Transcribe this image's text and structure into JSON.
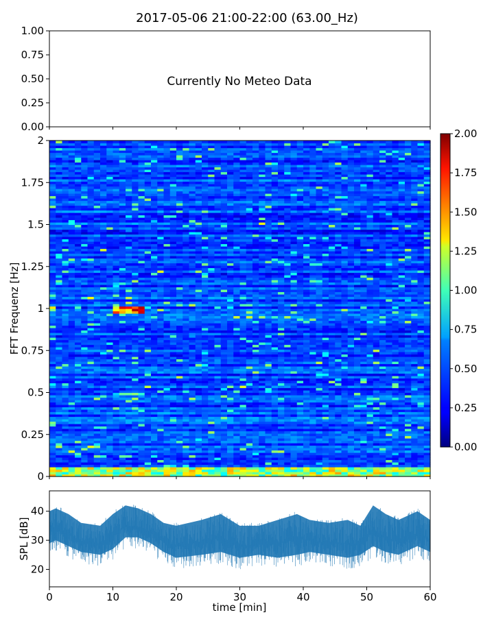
{
  "title": "2017-05-06 21:00-22:00 (63.00_Hz)",
  "chart_data": [
    {
      "type": "line",
      "panel": "meteo",
      "annotation": "Currently No Meteo Data",
      "ylim": [
        0,
        1
      ],
      "yticks": [
        "0.00",
        "0.25",
        "0.50",
        "0.75",
        "1.00"
      ],
      "series": []
    },
    {
      "type": "heatmap",
      "panel": "spectrogram",
      "ylabel": "FFT Frequenz [Hz]",
      "xlim": [
        0,
        60
      ],
      "ylim": [
        0,
        2
      ],
      "yticks": [
        "0",
        "0.25",
        "0.5",
        "0.75",
        "1",
        "1.25",
        "1.5",
        "1.75",
        "2"
      ],
      "colormap": "jet",
      "colorbar": {
        "range": [
          0,
          2
        ],
        "ticks": [
          "0.00",
          "0.25",
          "0.50",
          "0.75",
          "1.00",
          "1.25",
          "1.50",
          "1.75",
          "2.00"
        ]
      },
      "typical_level": 0.25,
      "high_level_regions": [
        {
          "time_min": [
            10,
            15
          ],
          "freq_hz": [
            0.97,
            1.01
          ],
          "level": 1.6
        },
        {
          "time_min": [
            0,
            1
          ],
          "freq_hz": [
            0.98,
            1.01
          ],
          "level": 1.3
        },
        {
          "time_min": [
            10,
            15
          ],
          "freq_hz": [
            0.48,
            0.5
          ],
          "level": 1.0
        },
        {
          "time_min": [
            10,
            13
          ],
          "freq_hz": [
            1.14,
            1.16
          ],
          "level": 0.9
        },
        {
          "time_min": [
            0,
            60
          ],
          "freq_hz": [
            0,
            0.06
          ],
          "level": 1.2
        }
      ]
    },
    {
      "type": "line",
      "panel": "spl",
      "xlabel": "time [min]",
      "ylabel": "SPL [dB]",
      "xlim": [
        0,
        60
      ],
      "ylim": [
        14,
        47
      ],
      "xticks": [
        "0",
        "10",
        "20",
        "30",
        "40",
        "50",
        "60"
      ],
      "yticks": [
        "20",
        "30",
        "40"
      ],
      "color": "#1f77b4",
      "envelope": {
        "x": [
          0,
          1,
          3,
          5,
          8,
          10,
          12,
          14,
          16,
          18,
          20,
          24,
          27,
          30,
          33,
          36,
          39,
          41,
          44,
          47,
          49,
          51,
          53,
          55,
          57,
          58,
          60
        ],
        "upper": [
          41,
          42,
          40,
          37,
          36,
          40,
          43,
          42,
          40,
          37,
          36,
          38,
          40,
          36,
          36,
          38,
          40,
          38,
          37,
          38,
          36,
          43,
          40,
          38,
          40,
          41,
          38
        ],
        "lower": [
          25,
          26,
          24,
          22,
          21,
          23,
          27,
          27,
          25,
          22,
          20,
          21,
          22,
          20,
          21,
          20,
          21,
          22,
          21,
          20,
          21,
          24,
          22,
          21,
          23,
          24,
          22
        ]
      }
    }
  ]
}
